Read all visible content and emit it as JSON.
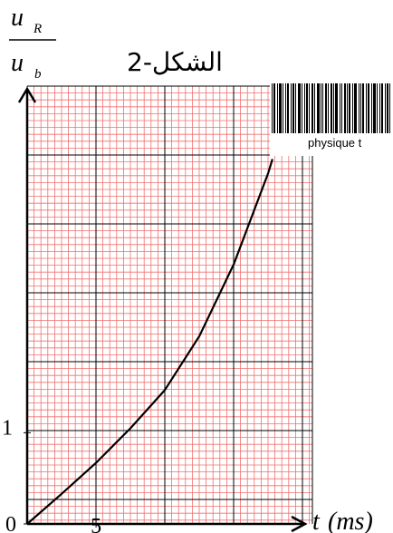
{
  "chart_data": {
    "type": "line",
    "title": "الشكل-2",
    "y_label": {
      "num": "u",
      "num_sub": "R",
      "den": "u",
      "den_sub": "b"
    },
    "x_label_var": "t",
    "x_label_unit": "(ms)",
    "watermark": "physique t",
    "x": [
      0,
      2.5,
      5,
      7.5,
      10,
      12.5,
      15,
      17.5,
      17.8
    ],
    "series": [
      {
        "name": "u_R/u_b",
        "color": "#000000",
        "values": [
          0,
          0.33,
          0.67,
          1.05,
          1.47,
          2.06,
          2.85,
          3.85,
          4.0
        ]
      }
    ],
    "xlim": [
      0,
      20.7
    ],
    "ylim": [
      0,
      4.8
    ],
    "xticks": [
      0,
      5
    ],
    "yticks": [
      0,
      1
    ],
    "grid": true
  }
}
